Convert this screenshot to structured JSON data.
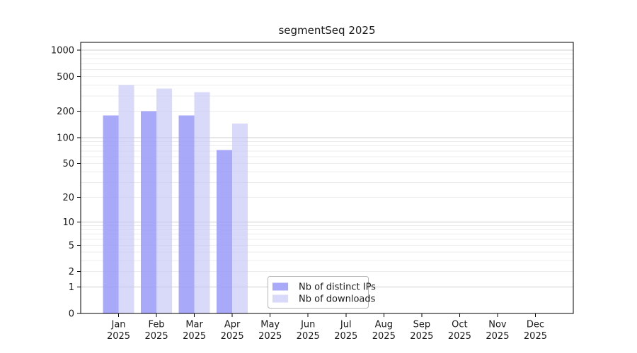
{
  "chart_data": {
    "type": "bar",
    "title": "segmentSeq 2025",
    "x_year": "2025",
    "categories": [
      "Jan",
      "Feb",
      "Mar",
      "Apr",
      "May",
      "Jun",
      "Jul",
      "Aug",
      "Sep",
      "Oct",
      "Nov",
      "Dec"
    ],
    "series": [
      {
        "name": "Nb of distinct IPs",
        "color": "#9a9af8",
        "values": [
          180,
          200,
          180,
          72,
          0,
          0,
          0,
          0,
          0,
          0,
          0,
          0
        ]
      },
      {
        "name": "Nb of downloads",
        "color": "#c2c2f6",
        "values": [
          400,
          365,
          330,
          145,
          0,
          0,
          0,
          0,
          0,
          0,
          0,
          0
        ]
      }
    ],
    "y_ticks": [
      0,
      1,
      2,
      5,
      10,
      20,
      50,
      100,
      200,
      500,
      1000
    ],
    "y_scale": "log1p",
    "ylim": [
      0,
      1000
    ],
    "grid": "horizontal",
    "legend_position": "bottom-center"
  }
}
